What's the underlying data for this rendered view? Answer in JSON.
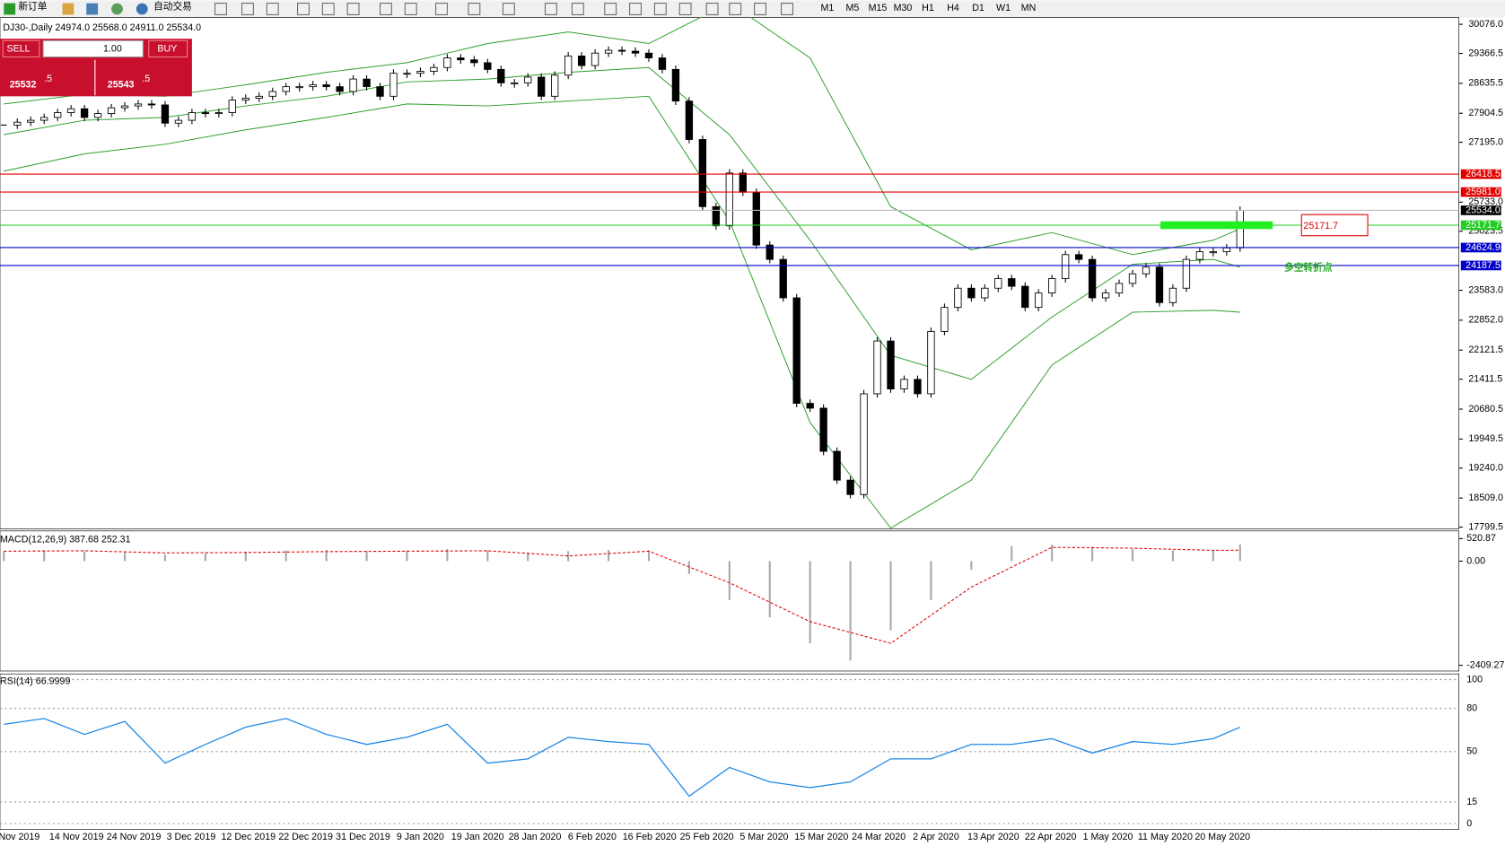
{
  "toolbar": {
    "new_order": "新订单",
    "auto_trading": "自动交易",
    "timeframes": [
      "M1",
      "M5",
      "M15",
      "M30",
      "H1",
      "H4",
      "D1",
      "W1",
      "MN"
    ]
  },
  "trade_panel": {
    "sell": "SELL",
    "lot": "1.00",
    "buy": "BUY",
    "bid_main": "25532",
    "bid_frac": ".5",
    "ask_main": "25543",
    "ask_frac": ".5"
  },
  "chart_data": {
    "type": "candlestick",
    "header": "DJ30-,Daily  24974.0 25568.0 24911.0 25534.0",
    "categories": [
      "Nov 2019",
      "14 Nov 2019",
      "24 Nov 2019",
      "3 Dec 2019",
      "12 Dec 2019",
      "22 Dec 2019",
      "31 Dec 2019",
      "9 Jan 2020",
      "19 Jan 2020",
      "28 Jan 2020",
      "6 Feb 2020",
      "16 Feb 2020",
      "25 Feb 2020",
      "5 Mar 2020",
      "15 Mar 2020",
      "24 Mar 2020",
      "2 Apr 2020",
      "13 Apr 2020",
      "22 Apr 2020",
      "1 May 2020",
      "11 May 2020",
      "20 May 2020"
    ],
    "close": [
      27616,
      27686,
      27733,
      27803,
      27920,
      28014,
      27803,
      27897,
      28038,
      28084,
      28131,
      28108,
      27663,
      27733,
      27920,
      27897,
      27920,
      28225,
      28272,
      28319,
      28436,
      28553,
      28553,
      28600,
      28553,
      28436,
      28740,
      28553,
      28319,
      28881,
      28881,
      28928,
      29022,
      29256,
      29209,
      29139,
      28975,
      28647,
      28647,
      28787,
      28319,
      28834,
      29303,
      29069,
      29373,
      29443,
      29420,
      29373,
      29256,
      28975,
      28202,
      27264,
      25624,
      25156,
      26444,
      25976,
      24687,
      24336,
      23398,
      20821,
      20704,
      19650,
      18947,
      18595,
      21055,
      22344,
      21173,
      21407,
      21055,
      22578,
      23164,
      23633,
      23398,
      23633,
      23867,
      23680,
      23164,
      23516,
      23867,
      24453,
      24336,
      23398,
      23516,
      23750,
      23984,
      24148,
      23281,
      23633,
      24336,
      24523,
      24523,
      24617,
      25534
    ],
    "bands": {
      "index": [
        0,
        6,
        12,
        18,
        24,
        30,
        36,
        42,
        48,
        54,
        60,
        66,
        72,
        78,
        84,
        90,
        92
      ],
      "upper": [
        28131,
        28366,
        28319,
        28600,
        28904,
        29139,
        29607,
        29889,
        29607,
        30600,
        29256,
        25624,
        24570,
        24992,
        24453,
        24804,
        25085
      ],
      "middle": [
        27382,
        27733,
        27803,
        28084,
        28319,
        28670,
        28740,
        28904,
        29022,
        27382,
        24804,
        21993,
        21407,
        22930,
        24218,
        24336,
        24148
      ],
      "lower": [
        26491,
        26913,
        27147,
        27499,
        27803,
        28131,
        28084,
        28202,
        28319,
        25273,
        20353,
        17775,
        18947,
        21758,
        23047,
        23094,
        23047
      ],
      "color": "#2a9d2a"
    },
    "ylim": [
      17799.5,
      30076
    ],
    "yticks": [
      {
        "value": 30076,
        "label": "30076.0"
      },
      29366.5,
      28635.5,
      27904.5,
      {
        "value": 27195,
        "label": "27195.0"
      },
      {
        "value": 25733,
        "label": "25733.0"
      },
      25023.5,
      {
        "value": 23583,
        "label": "23583.0"
      },
      {
        "value": 22852,
        "label": "22852.0"
      },
      22121.5,
      21411.5,
      20680.5,
      19949.5,
      {
        "value": 19240,
        "label": "19240.0"
      },
      {
        "value": 18509,
        "label": "18509.0"
      },
      17799.5
    ],
    "levels": [
      {
        "value": 26418.5,
        "color": "#e00000"
      },
      {
        "value": {
          "value": 25981,
          "label": "25981.0"
        },
        "color": "#e00000"
      },
      {
        "value": {
          "value": 25534,
          "label": "25534.0"
        },
        "color": "#000000"
      },
      {
        "value": 25171.7,
        "color": "#22cc22"
      },
      {
        "value": 24624.9,
        "color": "#0000c8"
      },
      {
        "value": 24187.5,
        "color": "#0000c8"
      }
    ],
    "annotation": "多空转折点",
    "macd": {
      "label": "MACD(12,26,9) 387.68 252.31",
      "hist_index": [
        0,
        3,
        6,
        9,
        12,
        15,
        18,
        21,
        24,
        27,
        30,
        33,
        36,
        39,
        42,
        45,
        48,
        51,
        54,
        57,
        60,
        63,
        66,
        69,
        72,
        75,
        78,
        81,
        84,
        87,
        90,
        92
      ],
      "hist": [
        220,
        250,
        230,
        200,
        150,
        180,
        220,
        250,
        260,
        240,
        250,
        280,
        250,
        200,
        230,
        260,
        250,
        -300,
        -900,
        -1300,
        -1900,
        -2300,
        -1600,
        -900,
        -200,
        350,
        380,
        330,
        280,
        250,
        260,
        387.68
      ],
      "signal_index": [
        0,
        6,
        12,
        18,
        24,
        30,
        36,
        42,
        48,
        54,
        60,
        66,
        72,
        78,
        84,
        90,
        92
      ],
      "signal": [
        230,
        240,
        190,
        200,
        220,
        230,
        240,
        120,
        230,
        -500,
        -1400,
        -1900,
        -600,
        320,
        300,
        250,
        252.31
      ],
      "ylim": [
        -2409.27,
        520.87
      ],
      "yticks": [
        520.87,
        {
          "value": 0,
          "label": "0.00"
        },
        -2409.27
      ]
    },
    "rsi": {
      "label": "RSI(14) 66.9999",
      "index": [
        0,
        3,
        6,
        9,
        12,
        15,
        18,
        21,
        24,
        27,
        30,
        33,
        36,
        39,
        42,
        45,
        48,
        51,
        54,
        57,
        60,
        63,
        66,
        69,
        72,
        75,
        78,
        81,
        84,
        87,
        90,
        92
      ],
      "values": [
        69,
        73,
        62,
        71,
        42,
        55,
        67,
        73,
        62,
        55,
        60,
        69,
        42,
        45,
        60,
        57,
        55,
        19,
        39,
        29,
        25,
        29,
        45,
        45,
        55,
        55,
        59,
        49,
        57,
        55,
        59,
        66.9999
      ],
      "color": "#1e88e5",
      "ylim": [
        0,
        100
      ],
      "yticks": [
        100,
        80,
        50,
        15,
        0
      ]
    }
  }
}
